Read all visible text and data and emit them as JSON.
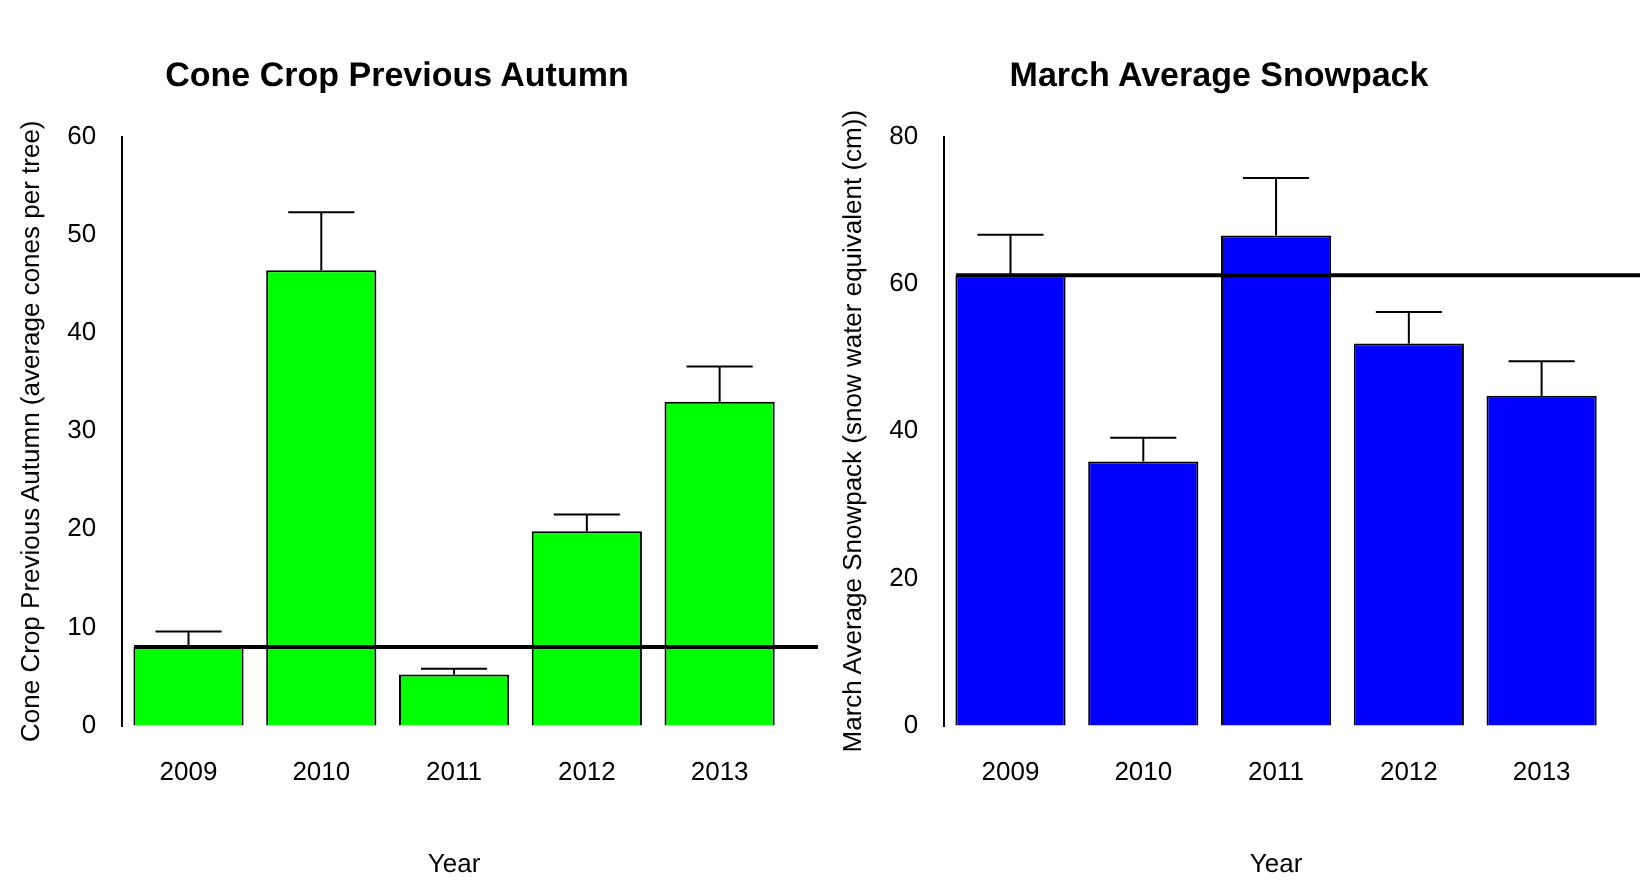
{
  "chart_data": [
    {
      "type": "bar",
      "title": "Cone Crop Previous Autumn",
      "xlabel": "Year",
      "ylabel": "Cone Crop Previous Autumn (average cones per tree)",
      "categories": [
        "2009",
        "2010",
        "2011",
        "2012",
        "2013"
      ],
      "values": [
        8.0,
        46.4,
        5.2,
        19.8,
        33.0
      ],
      "errors": [
        [
          8.0,
          9.6
        ],
        [
          46.4,
          52.3
        ],
        [
          5.2,
          5.8
        ],
        [
          19.8,
          21.5
        ],
        [
          33.0,
          36.6
        ]
      ],
      "color": "#00ff00",
      "ylim": [
        0,
        60
      ],
      "yticks": [
        0,
        10,
        20,
        30,
        40,
        50,
        60
      ],
      "ref_lines": [
        {
          "axis": "y",
          "value": 8.0,
          "color": "#000000"
        }
      ]
    },
    {
      "type": "bar",
      "title": "March Average Snowpack",
      "xlabel": "Year",
      "ylabel": "March Average Snowpack (snow water equivalent (cm))",
      "categories": [
        "2009",
        "2010",
        "2011",
        "2012",
        "2013"
      ],
      "values": [
        61.2,
        35.9,
        66.6,
        51.9,
        44.8
      ],
      "errors": [
        [
          61.2,
          66.7
        ],
        [
          35.9,
          39.1
        ],
        [
          66.6,
          74.4
        ],
        [
          51.9,
          56.2
        ],
        [
          44.8,
          49.5
        ]
      ],
      "color": "#0000ff",
      "ylim": [
        0,
        80
      ],
      "yticks": [
        0,
        20,
        40,
        60,
        80
      ],
      "ref_lines": [
        {
          "axis": "y",
          "value": 61.2,
          "color": "#000000"
        }
      ]
    }
  ]
}
